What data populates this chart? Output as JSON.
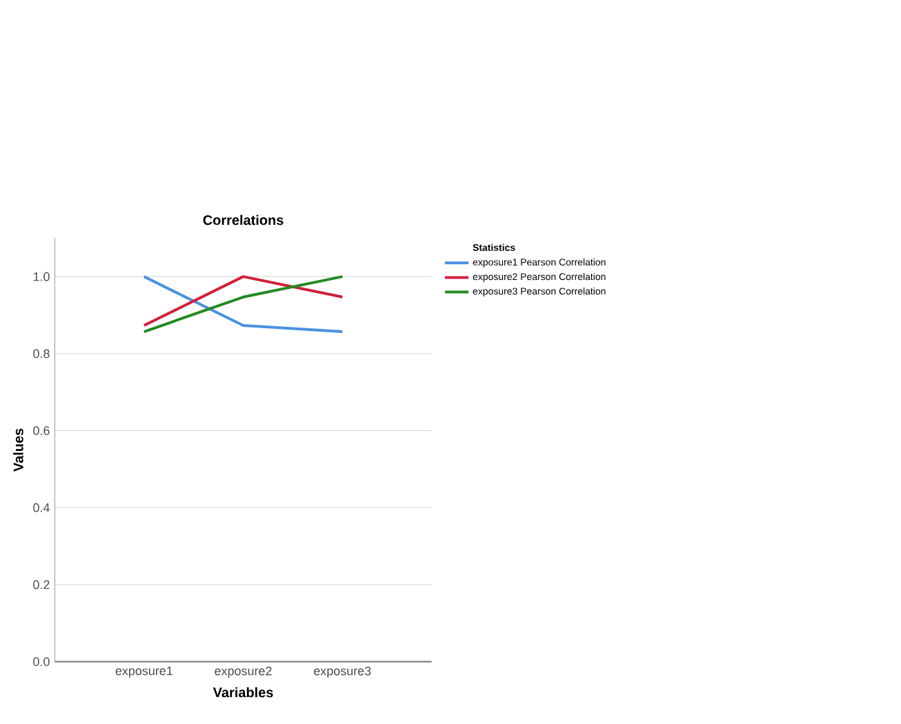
{
  "chart_data": {
    "type": "line",
    "title": "Correlations",
    "xlabel": "Variables",
    "ylabel": "Values",
    "legend_title": "Statistics",
    "categories": [
      "exposure1",
      "exposure2",
      "exposure3"
    ],
    "series": [
      {
        "name": "exposure1 Pearson Correlation",
        "color": "#4a90e2",
        "values": [
          1.0,
          0.873,
          0.857
        ]
      },
      {
        "name": "exposure2 Pearson Correlation",
        "color": "#d0203c",
        "values": [
          0.873,
          1.0,
          0.947
        ]
      },
      {
        "name": "exposure3 Pearson Correlation",
        "color": "#218a21",
        "values": [
          0.857,
          0.947,
          1.0
        ]
      }
    ],
    "ylim": [
      0,
      1.1
    ],
    "yticks": [
      {
        "value": 0,
        "label": "0.0"
      },
      {
        "value": 0.2,
        "label": "0.2"
      },
      {
        "value": 0.4,
        "label": "0.4"
      },
      {
        "value": 0.6,
        "label": "0.6"
      },
      {
        "value": 0.8,
        "label": "0.8"
      },
      {
        "value": 1.0,
        "label": "1.0"
      }
    ],
    "grid": "y",
    "legend": "top right",
    "marker": "none",
    "line_style": "solid"
  }
}
